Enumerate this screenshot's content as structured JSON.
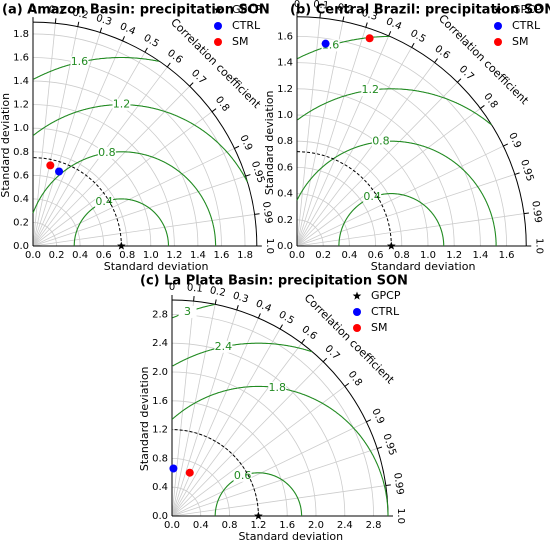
{
  "chart_data": [
    {
      "type": "taylor",
      "title": "(a) Amazon Basin: precipitation SON",
      "xlabel": "Standard deviation",
      "ylabel": "Standard deviation",
      "corr_label": "Correlation coefficient",
      "rlim": [
        0,
        1.9
      ],
      "rticks": [
        {
          "value": 0,
          "label": "0.0"
        },
        0.2,
        0.4,
        0.6,
        0.8,
        {
          "value": 1,
          "label": "1.0"
        },
        1.2,
        1.4,
        1.6,
        1.8
      ],
      "corr_ticks": [
        0,
        0.1,
        0.2,
        0.3,
        0.4,
        0.5,
        0.6,
        0.7,
        0.8,
        0.9,
        0.95,
        0.99,
        {
          "value": 1,
          "label": "1.0"
        }
      ],
      "rms_contours": [
        0.4,
        0.8,
        1.2,
        1.6
      ],
      "series": [
        {
          "name": "GPCP",
          "color": "#000000",
          "marker": "star",
          "std": 0.75,
          "corr": 1
        },
        {
          "name": "CTRL",
          "color": "#0000ff",
          "marker": "circle",
          "std": 0.67,
          "corr": 0.33
        },
        {
          "name": "SM",
          "color": "#ff0000",
          "marker": "circle",
          "std": 0.7,
          "corr": 0.21
        }
      ]
    },
    {
      "type": "taylor",
      "title": "(b) Central Brazil: precipitation SON",
      "xlabel": "Standard deviation",
      "ylabel": "Standard deviation",
      "corr_label": "Correlation coefficient",
      "rlim": [
        0,
        1.75
      ],
      "rticks": [
        {
          "value": 0,
          "label": "0.0"
        },
        0.2,
        0.4,
        0.6,
        0.8,
        {
          "value": 1,
          "label": "1.0"
        },
        1.2,
        1.4,
        1.6
      ],
      "corr_ticks": [
        0,
        0.1,
        0.2,
        0.3,
        0.4,
        0.5,
        0.6,
        0.7,
        0.8,
        0.9,
        0.95,
        0.99,
        {
          "value": 1,
          "label": "1.0"
        }
      ],
      "rms_contours": [
        0.4,
        0.8,
        1.2,
        1.6
      ],
      "series": [
        {
          "name": "GPCP",
          "color": "#000000",
          "marker": "star",
          "std": 0.72,
          "corr": 1
        },
        {
          "name": "CTRL",
          "color": "#0000ff",
          "marker": "circle",
          "std": 1.56,
          "corr": 0.14
        },
        {
          "name": "SM",
          "color": "#ff0000",
          "marker": "circle",
          "std": 1.68,
          "corr": 0.33
        }
      ]
    },
    {
      "type": "taylor",
      "title": "(c) La Plata Basin: precipitation SON",
      "xlabel": "Standard deviation",
      "ylabel": "Standard deviation",
      "corr_label": "Correlation coefficient",
      "rlim": [
        0,
        3.0
      ],
      "rticks": [
        {
          "value": 0,
          "label": "0.0"
        },
        0.4,
        0.8,
        1.2,
        1.6,
        {
          "value": 2,
          "label": "2.0"
        },
        2.4,
        2.8
      ],
      "corr_ticks": [
        0,
        0.1,
        0.2,
        0.3,
        0.4,
        0.5,
        0.6,
        0.7,
        0.8,
        0.9,
        0.95,
        0.99,
        {
          "value": 1,
          "label": "1.0"
        }
      ],
      "rms_contours": [
        0.6,
        1.8,
        2.4,
        3.0
      ],
      "series": [
        {
          "name": "GPCP",
          "color": "#000000",
          "marker": "star",
          "std": 1.2,
          "corr": 1
        },
        {
          "name": "CTRL",
          "color": "#0000ff",
          "marker": "circle",
          "std": 0.66,
          "corr": 0.03
        },
        {
          "name": "SM",
          "color": "#ff0000",
          "marker": "circle",
          "std": 0.65,
          "corr": 0.38
        }
      ]
    }
  ]
}
